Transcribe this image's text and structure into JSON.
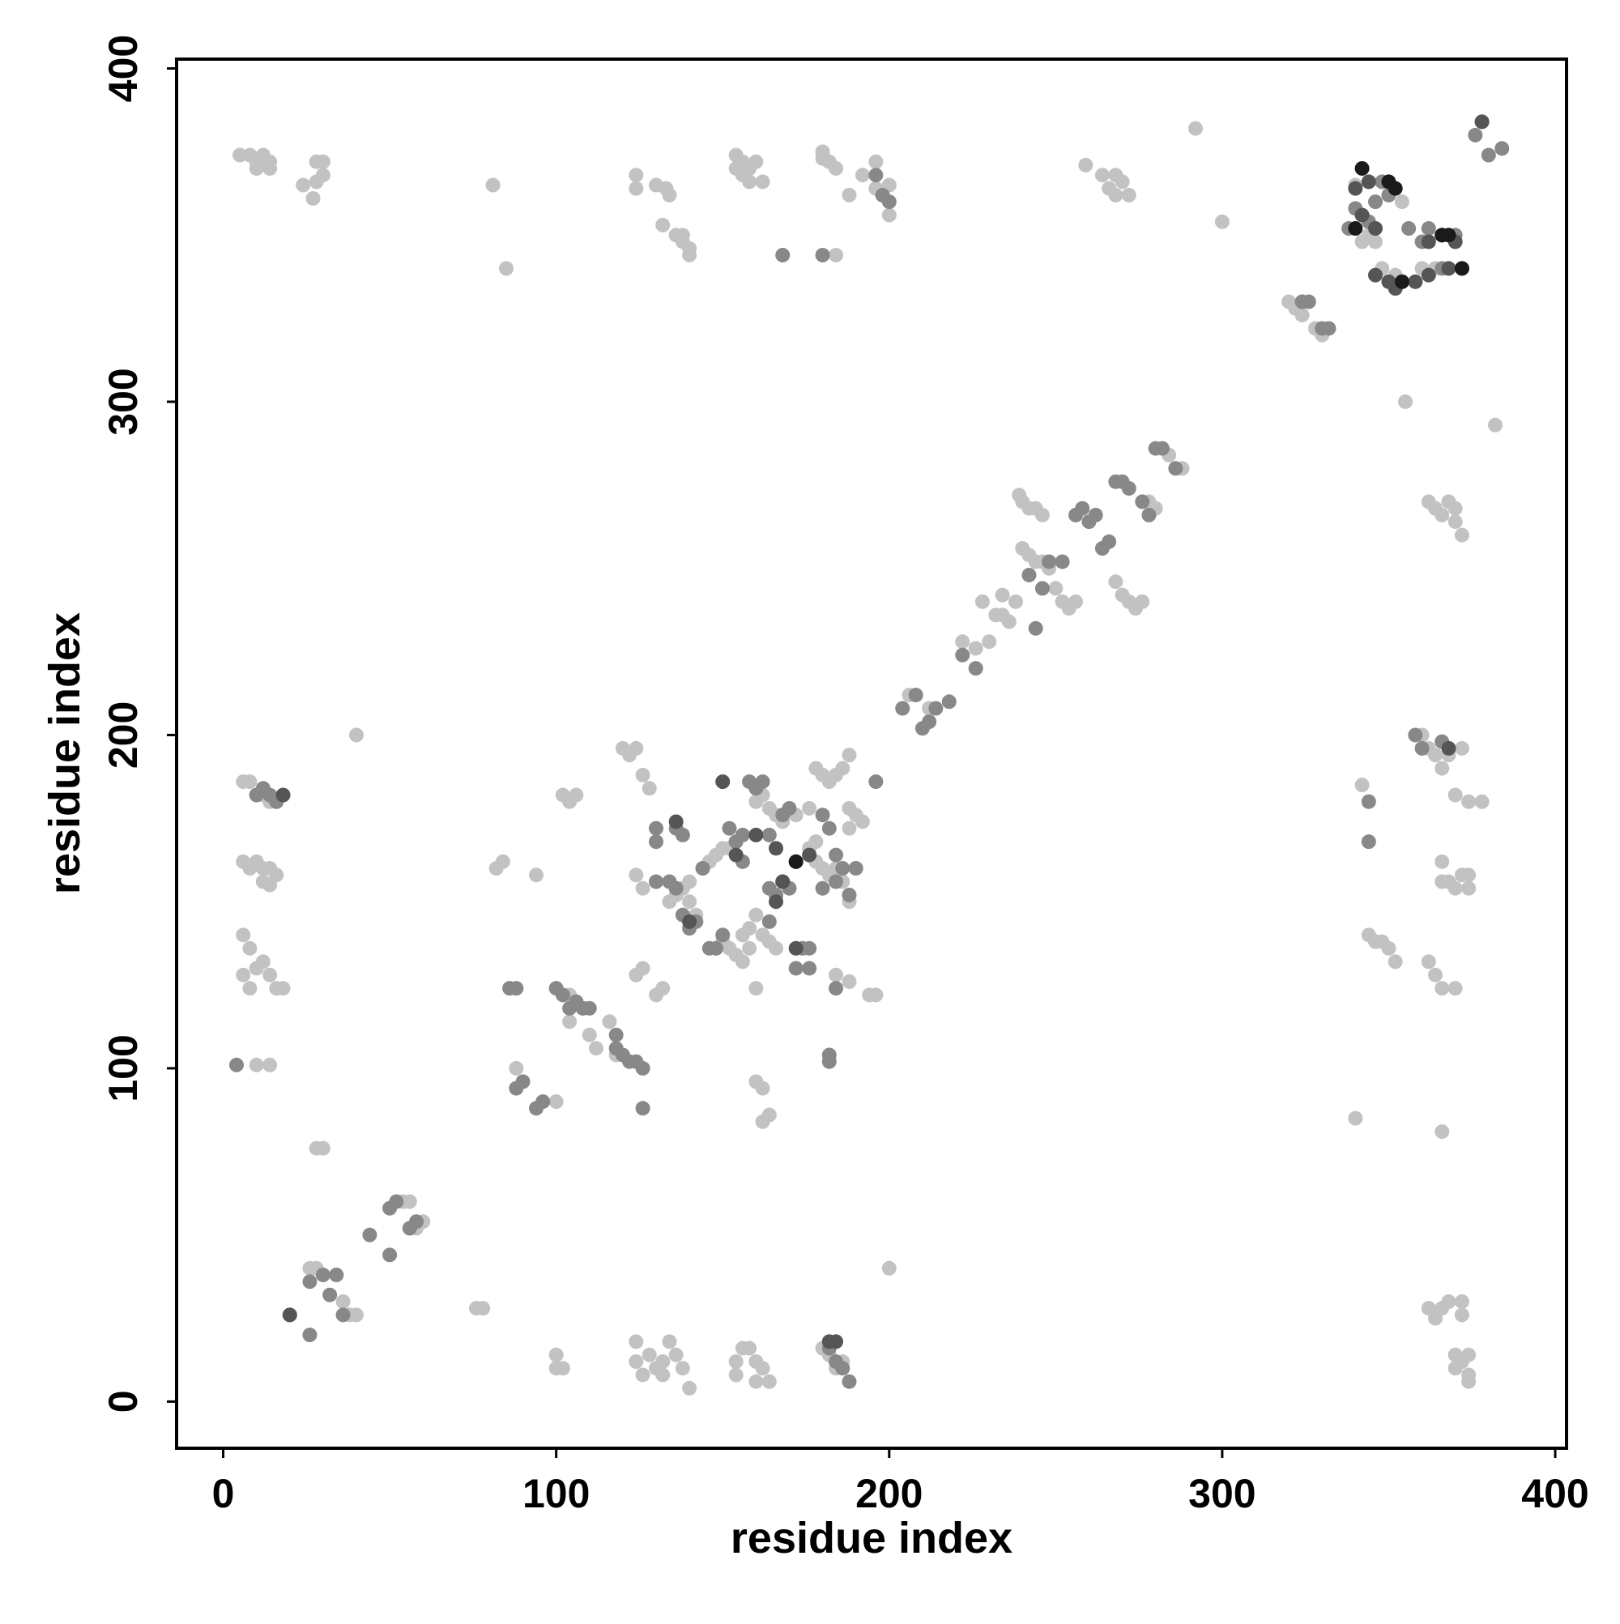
{
  "chart_data": {
    "type": "scatter",
    "xlabel": "residue index",
    "ylabel": "residue index",
    "xlim": [
      -14,
      403.4
    ],
    "ylim": [
      -14,
      402.8
    ],
    "xticks": [
      0,
      100,
      200,
      300,
      400
    ],
    "yticks": [
      0,
      100,
      200,
      300,
      400
    ],
    "series": [
      {
        "color": "#c2c2c2",
        "x": [
          5,
          8,
          10,
          12,
          14,
          10,
          14,
          24,
          28,
          30,
          28,
          30,
          27,
          81,
          85,
          124,
          124,
          130,
          133,
          134,
          132,
          136,
          138,
          140,
          140,
          138,
          154,
          156,
          158,
          160,
          156,
          158,
          162,
          154,
          180,
          182,
          184,
          180,
          184,
          188,
          192,
          196,
          200,
          196,
          198,
          200,
          259,
          264,
          268,
          270,
          268,
          272,
          266,
          292,
          300,
          320,
          322,
          324,
          328,
          330,
          342,
          344,
          346,
          348,
          352,
          354,
          360,
          364,
          340,
          355,
          382,
          239,
          240,
          242,
          244,
          246,
          240,
          242,
          244,
          246,
          248,
          250,
          252,
          254,
          256,
          268,
          270,
          272,
          274,
          276,
          278,
          280,
          284,
          288,
          232,
          236,
          234,
          230,
          226,
          222,
          206,
          212,
          228,
          234,
          238,
          362,
          364,
          366,
          368,
          370,
          370,
          372,
          360,
          362,
          364,
          366,
          368,
          372,
          370,
          374,
          378,
          366,
          366,
          368,
          372,
          374,
          374,
          370,
          342,
          344,
          346,
          348,
          350,
          352,
          362,
          364,
          366,
          370,
          340,
          366,
          362,
          364,
          366,
          368,
          372,
          372,
          370,
          372,
          374,
          370,
          374,
          374,
          6,
          8,
          10,
          12,
          14,
          6,
          8,
          10,
          12,
          14,
          12,
          16,
          14,
          6,
          8,
          10,
          12,
          14,
          16,
          18,
          6,
          8,
          10,
          14,
          40,
          82,
          84,
          94,
          88,
          100,
          102,
          104,
          106,
          120,
          122,
          124,
          126,
          128,
          124,
          126,
          124,
          126,
          130,
          132,
          134,
          136,
          138,
          140,
          140,
          142,
          144,
          146,
          148,
          150,
          152,
          150,
          152,
          154,
          156,
          158,
          156,
          158,
          160,
          160,
          162,
          164,
          166,
          160,
          162,
          164,
          166,
          168,
          172,
          176,
          178,
          180,
          182,
          184,
          186,
          188,
          176,
          178,
          180,
          182,
          184,
          186,
          188,
          188,
          190,
          192,
          184,
          188,
          194,
          196,
          188,
          178,
          160,
          162,
          162,
          164,
          28,
          30,
          26,
          28,
          36,
          38,
          40,
          54,
          56,
          60,
          58,
          76,
          78,
          100,
          100,
          102,
          124,
          124,
          126,
          128,
          130,
          132,
          132,
          134,
          136,
          138,
          140,
          154,
          156,
          158,
          160,
          162,
          160,
          164,
          154,
          180,
          182,
          184,
          186,
          200,
          116,
          110,
          104,
          112,
          118,
          108,
          104
        ],
        "values": [
          374,
          374,
          372,
          374,
          372,
          370,
          370,
          365,
          372,
          372,
          366,
          368,
          361,
          365,
          340,
          368,
          364,
          365,
          364,
          362,
          353,
          350,
          348,
          346,
          344,
          350,
          374,
          372,
          370,
          372,
          368,
          366,
          366,
          370,
          375,
          372,
          370,
          373,
          344,
          362,
          368,
          372,
          365,
          364,
          362,
          356,
          371,
          368,
          368,
          366,
          362,
          362,
          364,
          382,
          354,
          330,
          328,
          326,
          322,
          320,
          348,
          350,
          348,
          340,
          338,
          360,
          340,
          340,
          365,
          300,
          293,
          272,
          270,
          268,
          268,
          266,
          256,
          254,
          252,
          252,
          250,
          244,
          240,
          238,
          240,
          246,
          242,
          240,
          238,
          240,
          270,
          268,
          284,
          280,
          236,
          234,
          242,
          228,
          226,
          228,
          212,
          208,
          240,
          236,
          240,
          270,
          268,
          266,
          270,
          268,
          264,
          260,
          200,
          196,
          194,
          190,
          194,
          196,
          182,
          180,
          180,
          162,
          156,
          156,
          158,
          158,
          154,
          154,
          185,
          140,
          138,
          138,
          136,
          132,
          132,
          128,
          124,
          124,
          85,
          81,
          28,
          25,
          28,
          30,
          30,
          26,
          14,
          12,
          14,
          10,
          8,
          6,
          186,
          186,
          182,
          182,
          180,
          162,
          160,
          162,
          160,
          160,
          156,
          158,
          155,
          140,
          136,
          130,
          132,
          128,
          124,
          124,
          128,
          124,
          101,
          101,
          200,
          160,
          162,
          158,
          100,
          90,
          182,
          180,
          182,
          196,
          194,
          196,
          188,
          184,
          158,
          154,
          128,
          130,
          122,
          124,
          150,
          152,
          154,
          156,
          150,
          146,
          160,
          162,
          164,
          166,
          166,
          138,
          136,
          134,
          132,
          136,
          140,
          142,
          124,
          146,
          140,
          138,
          136,
          180,
          182,
          178,
          176,
          174,
          176,
          178,
          190,
          188,
          186,
          188,
          190,
          194,
          166,
          162,
          160,
          158,
          160,
          156,
          150,
          178,
          176,
          174,
          128,
          126,
          122,
          122,
          172,
          168,
          96,
          94,
          84,
          86,
          76,
          76,
          40,
          40,
          30,
          26,
          26,
          60,
          60,
          54,
          52,
          28,
          28,
          14,
          10,
          10,
          18,
          12,
          8,
          14,
          10,
          12,
          8,
          18,
          14,
          10,
          4,
          12,
          16,
          16,
          12,
          10,
          6,
          6,
          8,
          16,
          14,
          10,
          12,
          40,
          114,
          110,
          114,
          106,
          104,
          118,
          122
        ]
      },
      {
        "color": "#888888",
        "x": [
          4,
          10,
          12,
          14,
          16,
          26,
          30,
          32,
          34,
          36,
          44,
          50,
          50,
          52,
          56,
          58,
          26,
          20,
          88,
          86,
          88,
          90,
          94,
          96,
          100,
          102,
          104,
          106,
          108,
          110,
          118,
          118,
          120,
          122,
          124,
          126,
          126,
          130,
          130,
          136,
          138,
          130,
          134,
          136,
          138,
          140,
          142,
          144,
          146,
          148,
          150,
          152,
          154,
          156,
          156,
          158,
          160,
          162,
          164,
          164,
          166,
          168,
          170,
          172,
          174,
          172,
          176,
          176,
          164,
          168,
          170,
          180,
          182,
          184,
          186,
          188,
          190,
          180,
          184,
          182,
          184,
          186,
          188,
          184,
          182,
          182,
          196,
          168,
          180,
          196,
          198,
          200,
          204,
          208,
          214,
          218,
          222,
          226,
          210,
          212,
          244,
          242,
          246,
          248,
          252,
          256,
          258,
          260,
          262,
          264,
          266,
          268,
          270,
          272,
          276,
          278,
          280,
          282,
          286,
          324,
          326,
          330,
          332,
          340,
          344,
          346,
          348,
          350,
          356,
          360,
          362,
          366,
          370,
          338,
          358,
          360,
          366,
          344,
          344,
          376,
          378,
          380,
          384
        ],
        "values": [
          101,
          182,
          184,
          182,
          180,
          36,
          38,
          32,
          38,
          26,
          50,
          44,
          58,
          60,
          52,
          54,
          20,
          26,
          124,
          124,
          94,
          96,
          88,
          90,
          124,
          122,
          118,
          120,
          118,
          118,
          110,
          106,
          104,
          102,
          102,
          100,
          88,
          172,
          168,
          172,
          170,
          156,
          156,
          154,
          146,
          142,
          144,
          160,
          136,
          136,
          140,
          172,
          168,
          170,
          162,
          186,
          184,
          186,
          170,
          154,
          152,
          156,
          154,
          162,
          136,
          130,
          130,
          136,
          144,
          176,
          178,
          176,
          172,
          164,
          160,
          152,
          160,
          154,
          156,
          16,
          12,
          10,
          6,
          124,
          104,
          102,
          186,
          344,
          344,
          368,
          362,
          360,
          208,
          212,
          208,
          210,
          224,
          220,
          202,
          204,
          232,
          248,
          244,
          252,
          252,
          266,
          268,
          264,
          266,
          256,
          258,
          276,
          276,
          274,
          270,
          266,
          286,
          286,
          280,
          330,
          330,
          322,
          322,
          358,
          354,
          360,
          366,
          362,
          352,
          348,
          352,
          340,
          350,
          352,
          200,
          196,
          198,
          168,
          180,
          380,
          384,
          374,
          376
        ]
      },
      {
        "color": "#555555",
        "x": [
          18,
          20,
          136,
          154,
          150,
          160,
          166,
          166,
          168,
          172,
          176,
          182,
          184,
          140,
          340,
          342,
          344,
          346,
          346,
          350,
          352,
          354,
          358,
          362,
          368,
          372,
          362,
          366,
          370,
          368,
          378
        ],
        "values": [
          182,
          26,
          174,
          164,
          186,
          170,
          166,
          150,
          156,
          136,
          164,
          18,
          18,
          144,
          364,
          356,
          366,
          352,
          338,
          336,
          334,
          336,
          336,
          338,
          340,
          340,
          348,
          350,
          348,
          196,
          384
        ]
      },
      {
        "color": "#1a1a1a",
        "x": [
          342,
          350,
          352,
          366,
          368,
          340,
          354,
          372,
          172
        ],
        "values": [
          370,
          366,
          364,
          350,
          350,
          352,
          336,
          340,
          162
        ]
      }
    ]
  }
}
